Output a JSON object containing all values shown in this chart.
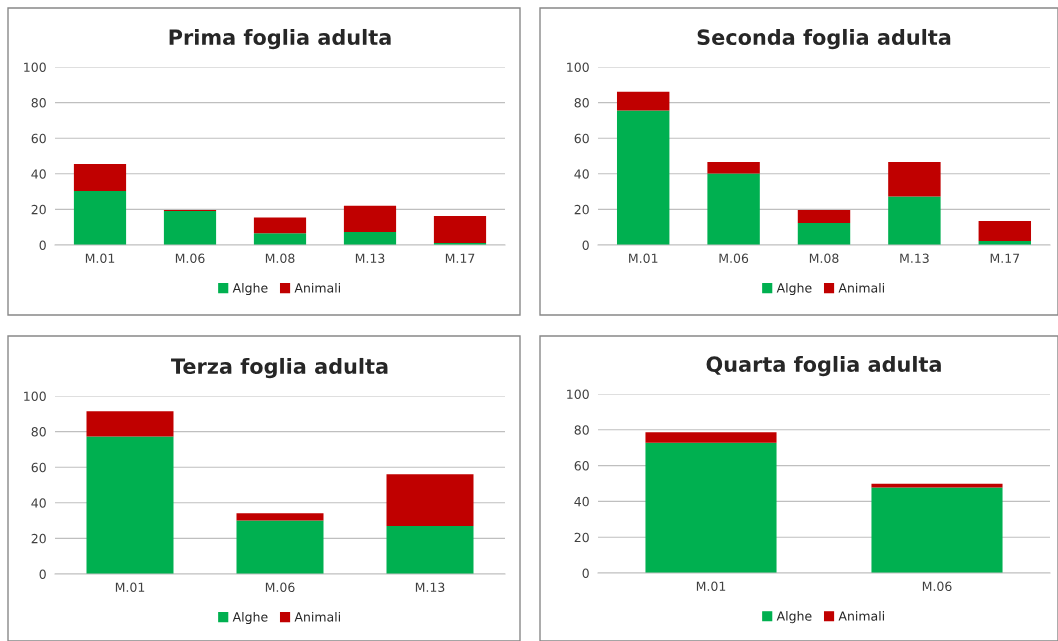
{
  "chart_data": [
    {
      "type": "bar",
      "title": "Prima foglia adulta",
      "categories": [
        "M.01",
        "M.06",
        "M.08",
        "M.13",
        "M.17"
      ],
      "stacked": true,
      "ylim": [
        0,
        100
      ],
      "yticks": [
        0,
        20,
        40,
        60,
        80,
        100
      ],
      "grid": "y",
      "legend": "bottom",
      "series": [
        {
          "name": "Alghe",
          "color": "#00b050",
          "values": [
            30.3,
            19.1,
            6.6,
            7.3,
            1.1
          ]
        },
        {
          "name": "Animali",
          "color": "#c00000",
          "values": [
            15.2,
            0.6,
            8.8,
            14.8,
            15.2
          ]
        }
      ]
    },
    {
      "type": "bar",
      "title": "Seconda foglia adulta",
      "categories": [
        "M.01",
        "M.06",
        "M.08",
        "M.13",
        "M.17"
      ],
      "stacked": true,
      "ylim": [
        0,
        100
      ],
      "yticks": [
        0,
        20,
        40,
        60,
        80,
        100
      ],
      "grid": "y",
      "legend": "bottom",
      "series": [
        {
          "name": "Alghe",
          "color": "#00b050",
          "values": [
            75.5,
            40.1,
            12.4,
            27.3,
            2.2
          ]
        },
        {
          "name": "Animali",
          "color": "#c00000",
          "values": [
            10.6,
            6.5,
            7.3,
            19.3,
            11.3
          ]
        }
      ]
    },
    {
      "type": "bar",
      "title": "Terza foglia adulta",
      "categories": [
        "M.01",
        "M.06",
        "M.13"
      ],
      "stacked": true,
      "ylim": [
        0,
        100
      ],
      "yticks": [
        0,
        20,
        40,
        60,
        80,
        100
      ],
      "grid": "y",
      "legend": "bottom",
      "series": [
        {
          "name": "Alghe",
          "color": "#00b050",
          "values": [
            77.2,
            30.0,
            27.0
          ]
        },
        {
          "name": "Animali",
          "color": "#c00000",
          "values": [
            14.2,
            4.1,
            29.0
          ]
        }
      ]
    },
    {
      "type": "bar",
      "title": "Quarta foglia adulta",
      "categories": [
        "M.01",
        "M.06"
      ],
      "stacked": true,
      "ylim": [
        0,
        100
      ],
      "yticks": [
        0,
        20,
        40,
        60,
        80,
        100
      ],
      "grid": "y",
      "legend": "bottom",
      "series": [
        {
          "name": "Alghe",
          "color": "#00b050",
          "values": [
            72.7,
            47.7
          ]
        },
        {
          "name": "Animali",
          "color": "#c00000",
          "values": [
            5.9,
            2.1
          ]
        }
      ]
    }
  ]
}
